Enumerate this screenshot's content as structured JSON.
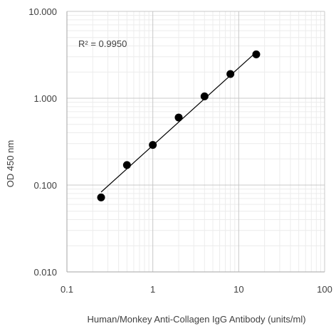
{
  "chart_data": {
    "type": "scatter",
    "x_scale": "log",
    "y_scale": "log",
    "xlim": [
      0.1,
      100
    ],
    "ylim": [
      0.01,
      10
    ],
    "x_ticks": [
      0.1,
      1,
      10,
      100
    ],
    "x_tick_labels": [
      "0.1",
      "1",
      "10",
      "100"
    ],
    "y_ticks": [
      0.01,
      0.1,
      1,
      10
    ],
    "y_tick_labels": [
      "0.010",
      "0.100",
      "1.000",
      "10.000"
    ],
    "xlabel": "Human/Monkey Anti-Collagen IgG Antibody (units/ml)",
    "ylabel": "OD 450 nm",
    "grid": "major and minor",
    "annotation": "R² = 0.9950",
    "marker_color": "#000000",
    "points": [
      {
        "x": 0.25,
        "y": 0.072
      },
      {
        "x": 0.5,
        "y": 0.17
      },
      {
        "x": 1,
        "y": 0.29
      },
      {
        "x": 2,
        "y": 0.6
      },
      {
        "x": 4,
        "y": 1.05
      },
      {
        "x": 8,
        "y": 1.9
      },
      {
        "x": 16,
        "y": 3.2
      }
    ],
    "trendline": {
      "type": "power",
      "from": {
        "x": 0.25,
        "y": 0.083
      },
      "to": {
        "x": 16,
        "y": 3.4
      }
    }
  }
}
